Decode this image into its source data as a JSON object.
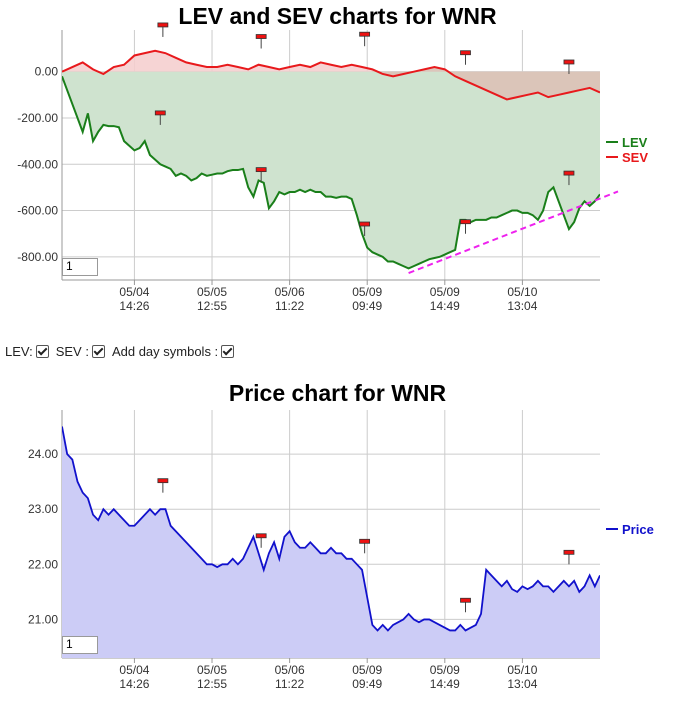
{
  "colors": {
    "lev": "#1a7f1a",
    "lev_fill": "#cfe3cf",
    "sev": "#e8191c",
    "sev_fill": "#f4cccc",
    "sev_fill_below": "#d6c2b4",
    "price": "#1111cc",
    "price_fill": "#ccccf6",
    "trend": "#ee22ee",
    "grid": "#cccccc",
    "marker_fill": "#ee1111",
    "marker_stroke": "#333333"
  },
  "controls": {
    "lev_label": "LEV:",
    "sev_label": "SEV :",
    "day_label": "Add day symbols :"
  },
  "chart_data": [
    {
      "type": "line",
      "title": "LEV and SEV charts for WNR",
      "zoom_value": "1",
      "ylim": [
        -900,
        180
      ],
      "y_ticks": [
        0,
        -200,
        -400,
        -600,
        -800
      ],
      "y_tick_labels": [
        "0.00",
        "-200.00",
        "-400.00",
        "-600.00",
        "-800.00"
      ],
      "x_ticks": [
        {
          "x": 14,
          "l1": "05/04",
          "l2": "14:26"
        },
        {
          "x": 29,
          "l1": "05/05",
          "l2": "12:55"
        },
        {
          "x": 44,
          "l1": "05/06",
          "l2": "11:22"
        },
        {
          "x": 59,
          "l1": "05/09",
          "l2": "09:49"
        },
        {
          "x": 74,
          "l1": "05/09",
          "l2": "14:49"
        },
        {
          "x": 89,
          "l1": "05/10",
          "l2": "13:04"
        }
      ],
      "xlim": [
        0,
        104
      ],
      "legend": "right",
      "series": [
        {
          "name": "LEV",
          "x": [
            0,
            1,
            2,
            3,
            4,
            5,
            5.5,
            6,
            7,
            8,
            9,
            10,
            11,
            12,
            13,
            14,
            15,
            16,
            17,
            18,
            19,
            20,
            21,
            22,
            23,
            24,
            25,
            26,
            27,
            28,
            29,
            30,
            31,
            32,
            33,
            34,
            35,
            36,
            37,
            38,
            39,
            40,
            41,
            42,
            43,
            44,
            45,
            46,
            47,
            48,
            49,
            50,
            51,
            52,
            53,
            54,
            55,
            56,
            57,
            58,
            59,
            60,
            61,
            62,
            63,
            64,
            65,
            66,
            67,
            68,
            69,
            70,
            71,
            72,
            73,
            74,
            75,
            76,
            77,
            78,
            79,
            80,
            81,
            82,
            83,
            84,
            85,
            86,
            87,
            88,
            89,
            90,
            91,
            92,
            93,
            94,
            95,
            96,
            97,
            98,
            99,
            100,
            101,
            102,
            103,
            104
          ],
          "y": [
            -20,
            -80,
            -140,
            -200,
            -260,
            -180,
            -240,
            -300,
            -260,
            -230,
            -235,
            -235,
            -240,
            -300,
            -320,
            -340,
            -330,
            -300,
            -360,
            -380,
            -400,
            -410,
            -420,
            -450,
            -440,
            -450,
            -470,
            -460,
            -440,
            -450,
            -445,
            -440,
            -440,
            -430,
            -425,
            -425,
            -420,
            -500,
            -540,
            -470,
            -480,
            -590,
            -560,
            -520,
            -530,
            -520,
            -520,
            -510,
            -520,
            -510,
            -520,
            -520,
            -540,
            -540,
            -545,
            -540,
            -540,
            -550,
            -620,
            -700,
            -760,
            -780,
            -790,
            -800,
            -820,
            -820,
            -830,
            -840,
            -850,
            -840,
            -830,
            -820,
            -810,
            -805,
            -800,
            -790,
            -780,
            -770,
            -640,
            -640,
            -650,
            -640,
            -640,
            -640,
            -630,
            -630,
            -620,
            -610,
            -600,
            -600,
            -610,
            -610,
            -620,
            -640,
            -600,
            -520,
            -500,
            -560,
            -620,
            -680,
            -650,
            -590,
            -560,
            -580,
            -560,
            -530
          ]
        },
        {
          "name": "SEV",
          "x": [
            0,
            2,
            4,
            6,
            8,
            10,
            12,
            14,
            16,
            18,
            20,
            22,
            24,
            26,
            28,
            30,
            32,
            34,
            36,
            38,
            40,
            42,
            44,
            46,
            48,
            50,
            52,
            54,
            56,
            58,
            60,
            62,
            64,
            66,
            68,
            70,
            72,
            74,
            76,
            78,
            80,
            82,
            84,
            86,
            88,
            90,
            92,
            94,
            96,
            98,
            100,
            102,
            104
          ],
          "y": [
            0,
            20,
            40,
            10,
            -10,
            20,
            30,
            70,
            80,
            90,
            80,
            60,
            40,
            30,
            20,
            20,
            30,
            20,
            10,
            30,
            20,
            10,
            20,
            30,
            20,
            40,
            30,
            20,
            30,
            20,
            10,
            -10,
            -20,
            -10,
            0,
            10,
            20,
            10,
            -20,
            -40,
            -60,
            -80,
            -100,
            -120,
            -110,
            -100,
            -90,
            -110,
            -100,
            -90,
            -80,
            -70,
            -90
          ]
        }
      ],
      "trend_line": {
        "x": [
          67,
          104
        ],
        "y": [
          -870,
          -565
        ]
      },
      "markers": [
        {
          "x": 19.5,
          "y": 150
        },
        {
          "x": 38.5,
          "y": 100
        },
        {
          "x": 58.5,
          "y": 110
        },
        {
          "x": 78,
          "y": 30
        },
        {
          "x": 98,
          "y": -10
        },
        {
          "x": 19,
          "y": -230
        },
        {
          "x": 38.5,
          "y": -475
        },
        {
          "x": 58.5,
          "y": -710
        },
        {
          "x": 78,
          "y": -700
        },
        {
          "x": 98,
          "y": -490
        }
      ]
    },
    {
      "type": "area",
      "title": "Price chart for WNR",
      "zoom_value": "1",
      "ylim": [
        20.3,
        24.8
      ],
      "y_ticks": [
        24,
        23,
        22,
        21
      ],
      "y_tick_labels": [
        "24.00",
        "23.00",
        "22.00",
        "21.00"
      ],
      "x_ticks": [
        {
          "x": 14,
          "l1": "05/04",
          "l2": "14:26"
        },
        {
          "x": 29,
          "l1": "05/05",
          "l2": "12:55"
        },
        {
          "x": 44,
          "l1": "05/06",
          "l2": "11:22"
        },
        {
          "x": 59,
          "l1": "05/09",
          "l2": "09:49"
        },
        {
          "x": 74,
          "l1": "05/09",
          "l2": "14:49"
        },
        {
          "x": 89,
          "l1": "05/10",
          "l2": "13:04"
        }
      ],
      "xlim": [
        0,
        104
      ],
      "legend": "right",
      "series": [
        {
          "name": "Price",
          "x": [
            0,
            1,
            2,
            3,
            4,
            5,
            6,
            7,
            8,
            9,
            10,
            11,
            12,
            13,
            14,
            15,
            16,
            17,
            18,
            19,
            20,
            21,
            22,
            23,
            24,
            25,
            26,
            27,
            28,
            29,
            30,
            31,
            32,
            33,
            34,
            35,
            36,
            37,
            38,
            39,
            40,
            41,
            42,
            43,
            44,
            45,
            46,
            47,
            48,
            49,
            50,
            51,
            52,
            53,
            54,
            55,
            56,
            57,
            58,
            59,
            60,
            61,
            62,
            63,
            64,
            65,
            66,
            67,
            68,
            69,
            70,
            71,
            72,
            73,
            74,
            75,
            76,
            77,
            78,
            79,
            80,
            81,
            82,
            83,
            84,
            85,
            86,
            87,
            88,
            89,
            90,
            91,
            92,
            93,
            94,
            95,
            96,
            97,
            98,
            99,
            100,
            101,
            102,
            103,
            104
          ],
          "y": [
            24.5,
            24.0,
            23.9,
            23.5,
            23.3,
            23.2,
            22.9,
            22.8,
            23.0,
            22.9,
            23.0,
            22.9,
            22.8,
            22.7,
            22.7,
            22.8,
            22.9,
            23.0,
            22.9,
            23.0,
            23.0,
            22.7,
            22.6,
            22.5,
            22.4,
            22.3,
            22.2,
            22.1,
            22.0,
            22.0,
            21.95,
            22.0,
            22.0,
            22.1,
            22.0,
            22.1,
            22.3,
            22.5,
            22.2,
            21.9,
            22.2,
            22.4,
            22.1,
            22.5,
            22.6,
            22.4,
            22.3,
            22.3,
            22.4,
            22.3,
            22.2,
            22.2,
            22.3,
            22.2,
            22.2,
            22.1,
            22.1,
            22.0,
            21.9,
            21.4,
            20.9,
            20.8,
            20.9,
            20.8,
            20.9,
            20.95,
            21.0,
            21.1,
            21.0,
            20.95,
            21.0,
            21.0,
            20.95,
            20.9,
            20.85,
            20.8,
            20.8,
            20.9,
            20.8,
            20.85,
            20.9,
            21.1,
            21.9,
            21.8,
            21.7,
            21.6,
            21.7,
            21.55,
            21.5,
            21.6,
            21.55,
            21.6,
            21.7,
            21.6,
            21.6,
            21.5,
            21.6,
            21.7,
            21.6,
            21.7,
            21.5,
            21.6,
            21.8,
            21.6,
            21.8
          ]
        }
      ],
      "markers": [
        {
          "x": 19.5,
          "y": 23.3
        },
        {
          "x": 38.5,
          "y": 22.3
        },
        {
          "x": 58.5,
          "y": 22.2
        },
        {
          "x": 78,
          "y": 21.13
        },
        {
          "x": 98,
          "y": 22.0
        }
      ]
    }
  ]
}
